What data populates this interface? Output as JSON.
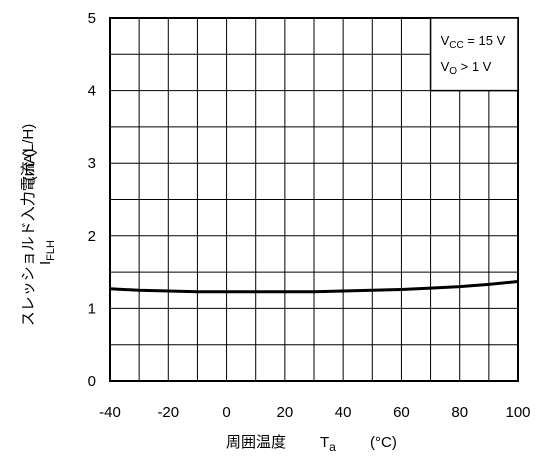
{
  "chart_data": {
    "type": "line",
    "title": "",
    "xlabel": "周囲温度",
    "xlabel_symbol": "T",
    "xlabel_subscript": "a",
    "xlabel_unit": "(°C)",
    "ylabel_line1": "スレッショルド入力電流 (L/H)",
    "ylabel_symbol": "I",
    "ylabel_subscript": "FLH",
    "ylabel_unit": "(mA)",
    "xlim": [
      -40,
      100
    ],
    "ylim": [
      0,
      5
    ],
    "x_ticks": [
      "-40",
      "-20",
      "0",
      "20",
      "40",
      "60",
      "80",
      "100"
    ],
    "y_ticks": [
      "0",
      "1",
      "2",
      "3",
      "4",
      "5"
    ],
    "grid": true,
    "grid_x_step": 10,
    "grid_y_step": 0.5,
    "legend_placement": "top-right",
    "conditions": [
      {
        "prefix": "V",
        "sub": "CC",
        "suffix": " = 15 V"
      },
      {
        "prefix": "V",
        "sub": "O",
        "suffix": " > 1 V"
      }
    ],
    "series": [
      {
        "x": [
          -40,
          -30,
          -20,
          -10,
          0,
          10,
          20,
          30,
          40,
          50,
          60,
          70,
          80,
          90,
          100
        ],
        "y": [
          1.27,
          1.25,
          1.24,
          1.23,
          1.23,
          1.23,
          1.23,
          1.23,
          1.24,
          1.25,
          1.26,
          1.28,
          1.3,
          1.33,
          1.37
        ]
      }
    ],
    "colors": {
      "line": "#000000",
      "grid": "#000000",
      "background": "#ffffff"
    }
  }
}
